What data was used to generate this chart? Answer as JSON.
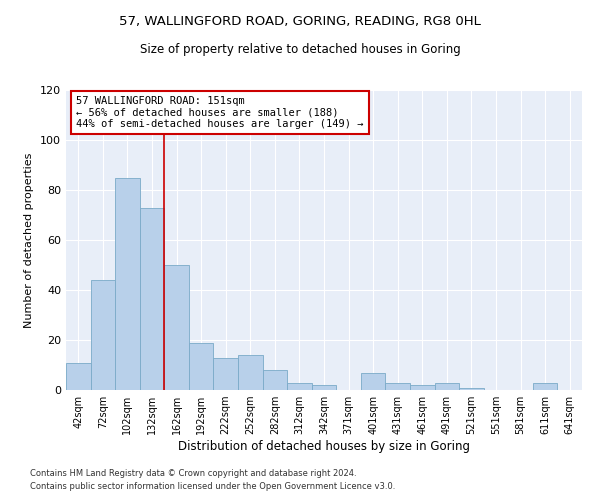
{
  "title1": "57, WALLINGFORD ROAD, GORING, READING, RG8 0HL",
  "title2": "Size of property relative to detached houses in Goring",
  "xlabel": "Distribution of detached houses by size in Goring",
  "ylabel": "Number of detached properties",
  "categories": [
    "42sqm",
    "72sqm",
    "102sqm",
    "132sqm",
    "162sqm",
    "192sqm",
    "222sqm",
    "252sqm",
    "282sqm",
    "312sqm",
    "342sqm",
    "371sqm",
    "401sqm",
    "431sqm",
    "461sqm",
    "491sqm",
    "521sqm",
    "551sqm",
    "581sqm",
    "611sqm",
    "641sqm"
  ],
  "values": [
    11,
    44,
    85,
    73,
    50,
    19,
    13,
    14,
    8,
    3,
    2,
    0,
    7,
    3,
    2,
    3,
    1,
    0,
    0,
    3,
    0
  ],
  "bar_color": "#b8d0ea",
  "bar_edge_color": "#7aaac8",
  "background_color": "#e8eef8",
  "ylim": [
    0,
    120
  ],
  "yticks": [
    0,
    20,
    40,
    60,
    80,
    100,
    120
  ],
  "property_line_x": 3.5,
  "annotation_text": "57 WALLINGFORD ROAD: 151sqm\n← 56% of detached houses are smaller (188)\n44% of semi-detached houses are larger (149) →",
  "annotation_box_color": "#ffffff",
  "annotation_box_edge": "#cc0000",
  "red_line_color": "#cc0000",
  "footer1": "Contains HM Land Registry data © Crown copyright and database right 2024.",
  "footer2": "Contains public sector information licensed under the Open Government Licence v3.0."
}
